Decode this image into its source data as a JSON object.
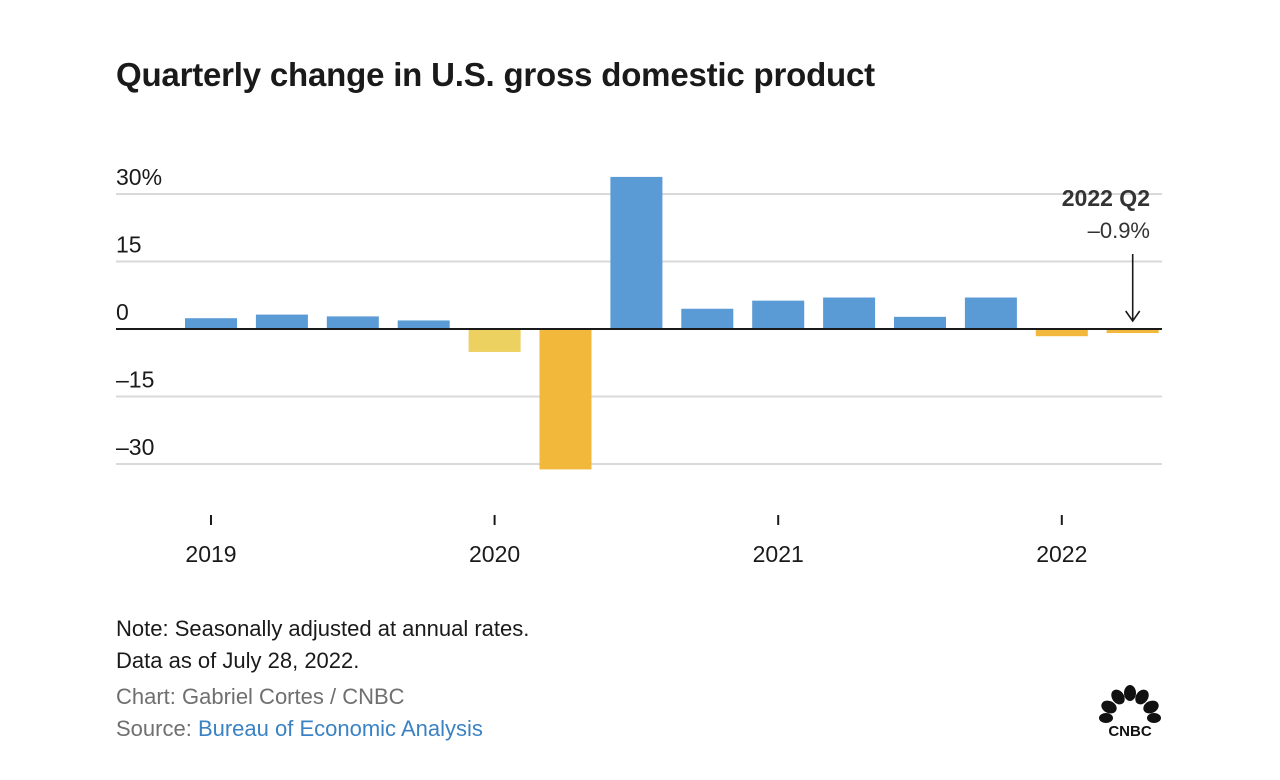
{
  "chart_data": {
    "type": "bar",
    "title": "Quarterly change in U.S. gross domestic product",
    "y_tick_labels": [
      "30%",
      "15",
      "0",
      "–15",
      "–30"
    ],
    "y_ticks": [
      30,
      15,
      0,
      -15,
      -30
    ],
    "ylim": [
      -36,
      36
    ],
    "x_tick_labels": [
      "2019",
      "2020",
      "2021",
      "2022"
    ],
    "grid": true,
    "series": [
      {
        "values": [
          2.4,
          3.2,
          2.8,
          1.9,
          -5.1,
          -31.2,
          33.8,
          4.5,
          6.3,
          7.0,
          2.7,
          7.0,
          -1.6,
          -0.9
        ]
      }
    ],
    "colors": {
      "positive": "#5b9bd5",
      "negative": [
        "#ecd060",
        "#f1b83c",
        "#f1b83c",
        "#f1b83c"
      ],
      "grid": "#d9d9d9",
      "axis": "#1a1a1a"
    },
    "annotation": {
      "label": "2022 Q2",
      "value_label": "–0.9%"
    }
  },
  "footer": {
    "note_line1": "Note: Seasonally adjusted at annual rates.",
    "note_line2": "Data as of July 28, 2022.",
    "credit": "Chart: Gabriel Cortes / CNBC",
    "source_prefix": "Source: ",
    "source_link": "Bureau of Economic Analysis"
  },
  "logo": {
    "text": "CNBC",
    "icon": "peacock-icon"
  }
}
